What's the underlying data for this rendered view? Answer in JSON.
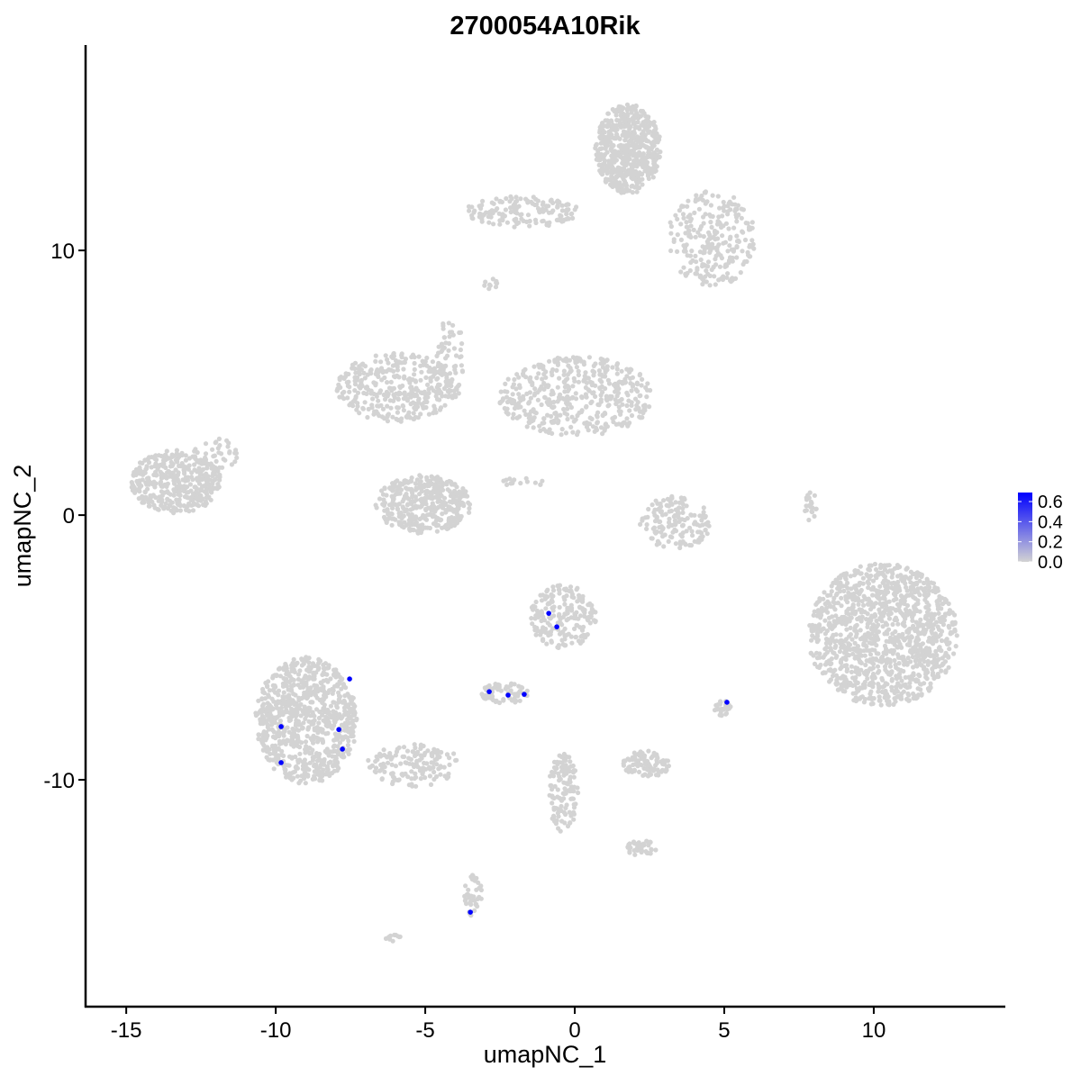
{
  "chart_data": {
    "type": "scatter",
    "title": "2700054A10Rik",
    "xlabel": "umapNC_1",
    "ylabel": "umapNC_2",
    "xlim": [
      -16.36,
      14.37
    ],
    "ylim": [
      -18.57,
      17.76
    ],
    "xticks": [
      -15,
      -10,
      -5,
      0,
      5,
      10
    ],
    "yticks": [
      -10,
      0,
      10
    ],
    "grid": false,
    "colors": {
      "low": "#d3d3d3",
      "high": "#0000ff"
    },
    "legend": {
      "position": "right",
      "ticks": [
        0.0,
        0.2,
        0.4,
        0.6
      ],
      "tick_labels": [
        "0.0",
        "0.2",
        "0.4",
        "0.6"
      ],
      "range": [
        0,
        0.69
      ]
    },
    "background_clusters": [
      {
        "x": 1.78,
        "y": 13.84,
        "sx": 1.1,
        "sy": 1.7,
        "n": 600
      },
      {
        "x": 4.58,
        "y": 10.44,
        "sx": 1.5,
        "sy": 1.8,
        "n": 250
      },
      {
        "x": -1.75,
        "y": 11.46,
        "sx": 1.9,
        "sy": 0.6,
        "n": 150
      },
      {
        "x": -5.96,
        "y": 4.83,
        "sx": 2.0,
        "sy": 1.3,
        "n": 350
      },
      {
        "x": 0.06,
        "y": 4.49,
        "sx": 2.6,
        "sy": 1.5,
        "n": 450
      },
      {
        "x": -5.06,
        "y": 0.41,
        "sx": 1.6,
        "sy": 1.1,
        "n": 400
      },
      {
        "x": -13.34,
        "y": 1.26,
        "sx": 1.5,
        "sy": 1.2,
        "n": 400
      },
      {
        "x": 10.3,
        "y": -4.52,
        "sx": 2.5,
        "sy": 2.7,
        "n": 1200
      },
      {
        "x": 3.37,
        "y": -0.27,
        "sx": 1.2,
        "sy": 1.0,
        "n": 150
      },
      {
        "x": -0.39,
        "y": -3.84,
        "sx": 1.1,
        "sy": 1.2,
        "n": 200
      },
      {
        "x": -8.98,
        "y": -7.76,
        "sx": 1.7,
        "sy": 2.4,
        "n": 800
      },
      {
        "x": -5.36,
        "y": -9.46,
        "sx": 1.6,
        "sy": 0.8,
        "n": 150
      },
      {
        "x": -2.35,
        "y": -6.73,
        "sx": 0.8,
        "sy": 0.4,
        "n": 70
      },
      {
        "x": 2.41,
        "y": -9.39,
        "sx": 0.8,
        "sy": 0.5,
        "n": 100
      },
      {
        "x": -0.39,
        "y": -10.48,
        "sx": 0.5,
        "sy": 1.5,
        "n": 120
      },
      {
        "x": 2.23,
        "y": -12.59,
        "sx": 0.5,
        "sy": 0.3,
        "n": 40
      },
      {
        "x": -3.4,
        "y": -14.39,
        "sx": 0.3,
        "sy": 0.8,
        "n": 40
      },
      {
        "x": 4.97,
        "y": -7.31,
        "sx": 0.3,
        "sy": 0.3,
        "n": 25
      },
      {
        "x": 7.89,
        "y": 0.34,
        "sx": 0.2,
        "sy": 0.6,
        "n": 20
      },
      {
        "x": -4.16,
        "y": 5.85,
        "sx": 0.5,
        "sy": 1.6,
        "n": 60
      },
      {
        "x": -2.8,
        "y": 8.74,
        "sx": 0.3,
        "sy": 0.2,
        "n": 10
      },
      {
        "x": -6.1,
        "y": -15.97,
        "sx": 0.3,
        "sy": 0.15,
        "n": 10
      },
      {
        "x": -1.8,
        "y": 1.26,
        "sx": 0.8,
        "sy": 0.2,
        "n": 15
      },
      {
        "x": -12.0,
        "y": 2.3,
        "sx": 0.8,
        "sy": 0.6,
        "n": 40
      }
    ],
    "expressing_points": [
      {
        "x": -0.87,
        "y": -3.71,
        "value": 0.69
      },
      {
        "x": -0.6,
        "y": -4.22,
        "value": 0.69
      },
      {
        "x": -7.53,
        "y": -6.19,
        "value": 0.69
      },
      {
        "x": -2.86,
        "y": -6.67,
        "value": 0.69
      },
      {
        "x": -2.23,
        "y": -6.8,
        "value": 0.69
      },
      {
        "x": -1.69,
        "y": -6.77,
        "value": 0.69
      },
      {
        "x": 5.09,
        "y": -7.07,
        "value": 0.69
      },
      {
        "x": -9.82,
        "y": -7.99,
        "value": 0.69
      },
      {
        "x": -7.89,
        "y": -8.1,
        "value": 0.69
      },
      {
        "x": -7.77,
        "y": -8.84,
        "value": 0.69
      },
      {
        "x": -9.82,
        "y": -9.35,
        "value": 0.69
      },
      {
        "x": -3.49,
        "y": -15.0,
        "value": 0.69
      }
    ]
  }
}
